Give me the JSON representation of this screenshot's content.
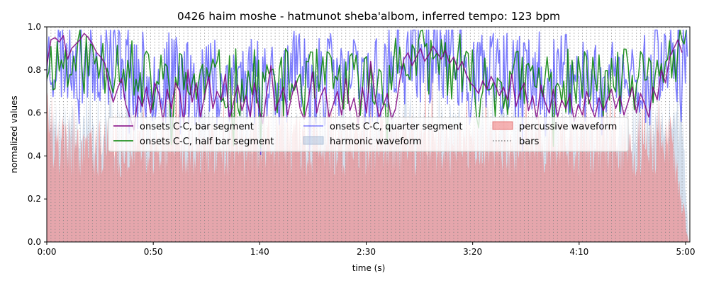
{
  "chart_data": {
    "type": "line",
    "title": "0426 haim moshe - hatmunot sheba'albom, inferred tempo: 123 bpm",
    "xlabel": "time (s)",
    "ylabel": "normalized values",
    "xlim": [
      0,
      302
    ],
    "ylim": [
      0,
      1.0
    ],
    "x_ticks": [
      {
        "value": 0,
        "label": "0:00"
      },
      {
        "value": 50,
        "label": "0:50"
      },
      {
        "value": 100,
        "label": "1:40"
      },
      {
        "value": 150,
        "label": "2:30"
      },
      {
        "value": 200,
        "label": "3:20"
      },
      {
        "value": 250,
        "label": "4:10"
      },
      {
        "value": 300,
        "label": "5:00"
      }
    ],
    "y_ticks": [
      {
        "value": 0.0,
        "label": "0.0"
      },
      {
        "value": 0.2,
        "label": "0.2"
      },
      {
        "value": 0.4,
        "label": "0.4"
      },
      {
        "value": 0.6,
        "label": "0.6"
      },
      {
        "value": 0.8,
        "label": "0.8"
      },
      {
        "value": 1.0,
        "label": "1.0"
      }
    ],
    "tempo_bpm": 123,
    "duration_s": 301.5,
    "legend_position": "center",
    "series": [
      {
        "key": "bar",
        "name": "onsets C-C, bar segment",
        "color": "#800080",
        "style": "line",
        "alpha": 0.85,
        "x_start": 0,
        "x_step": 1.95,
        "values": [
          0.82,
          0.94,
          0.95,
          0.93,
          0.96,
          0.85,
          0.9,
          0.92,
          0.94,
          0.97,
          0.95,
          0.92,
          0.88,
          0.86,
          0.83,
          0.72,
          0.65,
          0.71,
          0.76,
          0.64,
          0.58,
          0.52,
          0.68,
          0.63,
          0.72,
          0.6,
          0.74,
          0.69,
          0.56,
          0.71,
          0.62,
          0.74,
          0.7,
          0.55,
          0.8,
          0.65,
          0.74,
          0.58,
          0.68,
          0.77,
          0.62,
          0.7,
          0.66,
          0.78,
          0.57,
          0.65,
          0.73,
          0.61,
          0.68,
          0.58,
          0.74,
          0.63,
          0.55,
          0.7,
          0.82,
          0.61,
          0.66,
          0.72,
          0.59,
          0.68,
          0.75,
          0.62,
          0.57,
          0.66,
          0.79,
          0.6,
          0.68,
          0.72,
          0.58,
          0.64,
          0.7,
          0.59,
          0.76,
          0.61,
          0.67,
          0.55,
          0.72,
          0.6,
          0.84,
          0.68,
          0.58,
          0.63,
          0.69,
          0.57,
          0.62,
          0.75,
          0.85,
          0.88,
          0.82,
          0.86,
          0.9,
          0.84,
          0.87,
          0.91,
          0.88,
          0.85,
          0.89,
          0.83,
          0.86,
          0.8,
          0.84,
          0.78,
          0.74,
          0.72,
          0.69,
          0.75,
          0.71,
          0.77,
          0.73,
          0.68,
          0.72,
          0.66,
          0.78,
          0.63,
          0.7,
          0.74,
          0.61,
          0.68,
          0.57,
          0.73,
          0.65,
          0.6,
          0.71,
          0.58,
          0.66,
          0.62,
          0.69,
          0.56,
          0.64,
          0.59,
          0.7,
          0.63,
          0.58,
          0.67,
          0.61,
          0.66,
          0.71,
          0.62,
          0.68,
          0.59,
          0.65,
          0.72,
          0.6,
          0.69,
          0.64,
          0.58,
          0.72,
          0.66,
          0.8,
          0.74,
          0.86,
          0.9,
          0.94,
          0.88
        ]
      },
      {
        "key": "half",
        "name": "onsets C-C, half bar segment",
        "color": "#008000",
        "style": "line",
        "alpha": 0.85,
        "x_start": 0,
        "x_step": 0.975,
        "seed": 11,
        "base": 0.74,
        "amp": 0.16
      },
      {
        "key": "quarter",
        "name": "onsets C-C, quarter segment",
        "color": "#0000ff",
        "style": "line",
        "alpha": 0.5,
        "x_start": 0,
        "x_step": 0.49,
        "seed": 23,
        "base": 0.76,
        "amp": 0.22
      },
      {
        "key": "harmonic",
        "name": "harmonic waveform",
        "color": "#b0c4de",
        "style": "area",
        "alpha": 0.55
      },
      {
        "key": "percussive",
        "name": "percussive waveform",
        "color": "#f08080",
        "style": "area",
        "alpha": 0.6
      },
      {
        "key": "bars",
        "name": "bars",
        "color": "#808080",
        "style": "vlines-dotted",
        "interval_s": 1.95
      }
    ]
  }
}
